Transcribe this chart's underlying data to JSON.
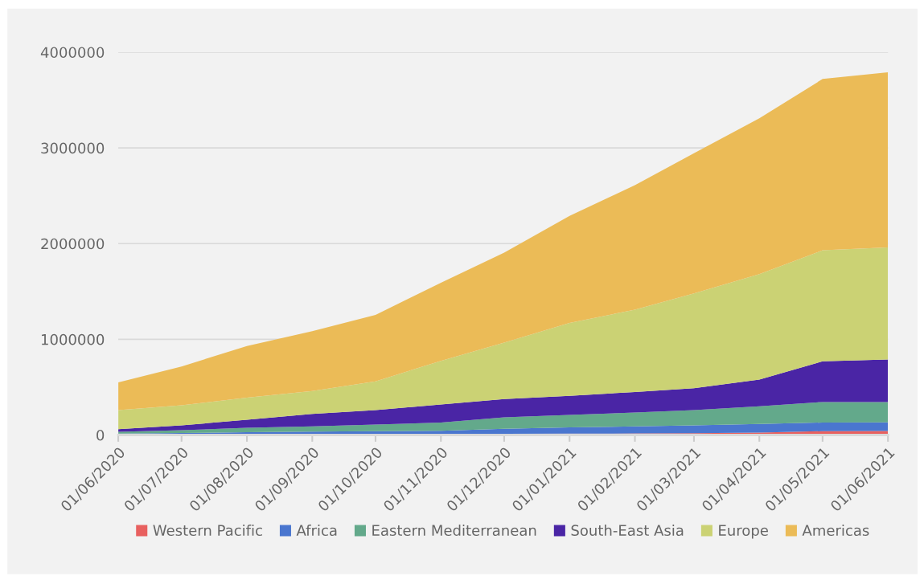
{
  "chart_data": {
    "type": "area",
    "stacked": true,
    "x": [
      "2020-06-01",
      "2020-07-01",
      "2020-08-01",
      "2020-09-01",
      "2020-10-01",
      "2020-11-01",
      "2020-12-01",
      "2021-01-01",
      "2021-02-01",
      "2021-03-01",
      "2021-04-01",
      "2021-05-01",
      "2021-06-01"
    ],
    "series": [
      {
        "name": "Western Pacific",
        "color": "#e8605f",
        "values": [
          5000,
          6000,
          8000,
          9000,
          10000,
          11000,
          12000,
          14000,
          16000,
          18000,
          25000,
          40000,
          42000
        ]
      },
      {
        "name": "Africa",
        "color": "#4a76cf",
        "values": [
          10000,
          14000,
          22000,
          26000,
          30000,
          34000,
          53000,
          66000,
          74000,
          82000,
          90000,
          90000,
          90000
        ]
      },
      {
        "name": "Eastern Mediterranean",
        "color": "#63a98b",
        "values": [
          19000,
          30000,
          46000,
          55000,
          70000,
          85000,
          120000,
          130000,
          145000,
          160000,
          185000,
          215000,
          213000
        ]
      },
      {
        "name": "South-East Asia",
        "color": "#4a25a5",
        "values": [
          26000,
          50000,
          84000,
          130000,
          150000,
          190000,
          190000,
          200000,
          215000,
          230000,
          280000,
          425000,
          445000
        ]
      },
      {
        "name": "Europe",
        "color": "#cbd274",
        "values": [
          200000,
          210000,
          230000,
          240000,
          300000,
          455000,
          590000,
          760000,
          860000,
          990000,
          1100000,
          1160000,
          1170000
        ]
      },
      {
        "name": "Americas",
        "color": "#ebbb57",
        "values": [
          290000,
          406000,
          540000,
          625000,
          695000,
          815000,
          940000,
          1120000,
          1300000,
          1465000,
          1630000,
          1790000,
          1830000
        ]
      }
    ],
    "xlim": [
      "2020-06-01",
      "2021-06-01"
    ],
    "xticks": [
      {
        "value": "2020-06-01",
        "label": "01/06/2020"
      },
      {
        "value": "2020-07-01",
        "label": "01/07/2020"
      },
      {
        "value": "2020-08-01",
        "label": "01/08/2020"
      },
      {
        "value": "2020-09-01",
        "label": "01/09/2020"
      },
      {
        "value": "2020-10-01",
        "label": "01/10/2020"
      },
      {
        "value": "2020-11-01",
        "label": "01/11/2020"
      },
      {
        "value": "2020-12-01",
        "label": "01/12/2020"
      },
      {
        "value": "2021-01-01",
        "label": "01/01/2021"
      },
      {
        "value": "2021-02-01",
        "label": "01/02/2021"
      },
      {
        "value": "2021-03-01",
        "label": "01/03/2021"
      },
      {
        "value": "2021-04-01",
        "label": "01/04/2021"
      },
      {
        "value": "2021-05-01",
        "label": "01/05/2021"
      },
      {
        "value": "2021-06-01",
        "label": "01/06/2021"
      }
    ],
    "ylim": [
      0,
      4000000
    ],
    "yticks": [
      0,
      1000000,
      2000000,
      3000000,
      4000000
    ],
    "grid": "y",
    "legend": "bottom"
  }
}
